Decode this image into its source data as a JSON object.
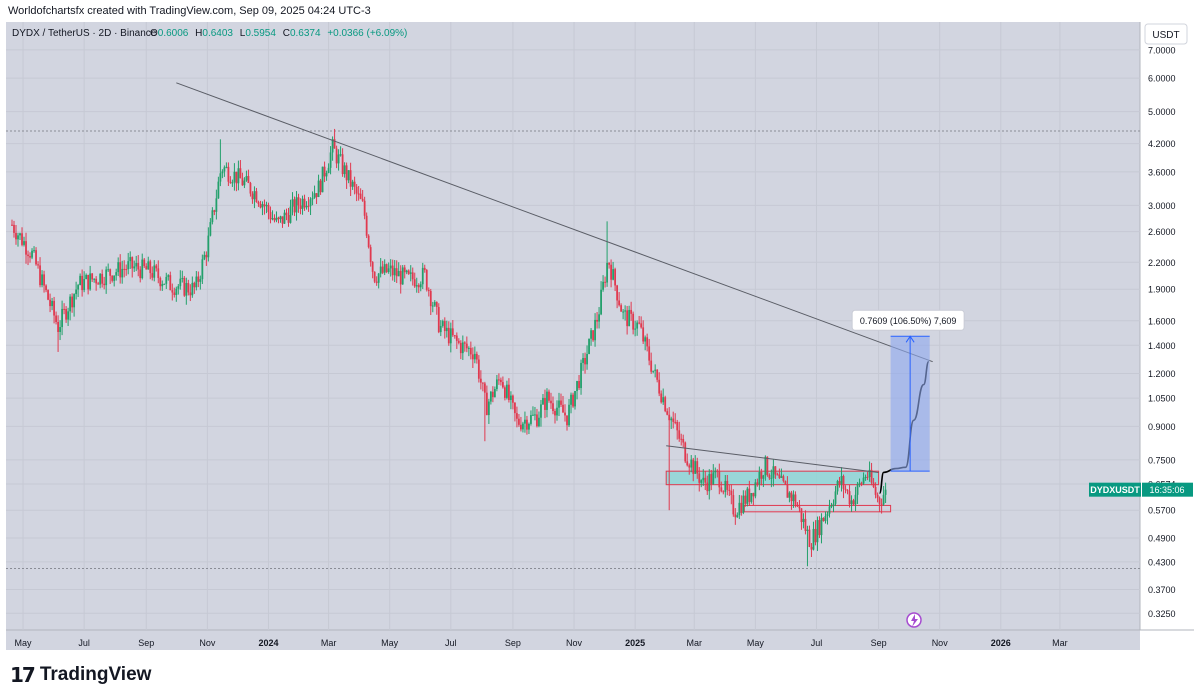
{
  "attribution": "Worldofchartsfx created with TradingView.com, Sep 09, 2025 04:24 UTC-3",
  "legend": {
    "symbol": "DYDX / TetherUS · 2D · Binance",
    "o_label": "O",
    "o_value": "0.6006",
    "h_label": "H",
    "h_value": "0.6403",
    "l_label": "L",
    "l_value": "0.5954",
    "c_label": "C",
    "c_value": "0.6374",
    "change": "+0.0366 (+6.09%)"
  },
  "currency_button": "USDT",
  "price_tag": {
    "symbol": "DYDXUSDT",
    "countdown": "16:35:06"
  },
  "measure_label": "0.7609 (106.50%) 7,609",
  "footer_logo": "TradingView",
  "colors": {
    "background": "#d2d5e0",
    "up": "#22a06b",
    "down": "#e0394f",
    "trendline": "#5a5d66",
    "zone_fill": "#8fd6d6",
    "zone_border": "#e0394f",
    "measure_fill": "#8ea8ef",
    "measure_line": "#2962ff",
    "projection": "#000000",
    "lightning_icon": "#a64bd0"
  },
  "chart_data": {
    "type": "candlestick",
    "symbol": "DYDX / TetherUS",
    "interval": "2D",
    "exchange": "Binance",
    "y_scale": "log",
    "y_ticks": [
      "7.0000",
      "6.0000",
      "5.0000",
      "4.2000",
      "3.6000",
      "3.0000",
      "2.6000",
      "2.2000",
      "1.9000",
      "1.6000",
      "1.4000",
      "1.2000",
      "1.0500",
      "0.9000",
      "0.7500",
      "0.6574",
      "0.5700",
      "0.4900",
      "0.4300",
      "0.3700",
      "0.3250"
    ],
    "x_ticks": [
      "May",
      "Jul",
      "Sep",
      "Nov",
      "2024",
      "Mar",
      "May",
      "Jul",
      "Sep",
      "Nov",
      "2025",
      "Mar",
      "May",
      "Jul",
      "Sep",
      "Nov",
      "2026",
      "Mar"
    ],
    "x_range": [
      "2023-04-20",
      "2026-04-15"
    ],
    "y_range": [
      0.3,
      7.8
    ],
    "anchors": [
      [
        "2023-04-20",
        2.7
      ],
      [
        "2023-05-10",
        2.3
      ],
      [
        "2023-06-05",
        1.55
      ],
      [
        "2023-06-25",
        1.95
      ],
      [
        "2023-07-20",
        2.05
      ],
      [
        "2023-08-15",
        2.15
      ],
      [
        "2023-09-05",
        2.1
      ],
      [
        "2023-09-25",
        1.95
      ],
      [
        "2023-10-20",
        1.9
      ],
      [
        "2023-11-01",
        2.4
      ],
      [
        "2023-11-15",
        3.7
      ],
      [
        "2023-12-01",
        3.5
      ],
      [
        "2023-12-20",
        3.2
      ],
      [
        "2024-01-10",
        2.7
      ],
      [
        "2024-01-25",
        2.95
      ],
      [
        "2024-02-20",
        3.3
      ],
      [
        "2024-03-05",
        4.1
      ],
      [
        "2024-03-20",
        3.5
      ],
      [
        "2024-04-05",
        2.95
      ],
      [
        "2024-04-15",
        2.05
      ],
      [
        "2024-05-01",
        2.1
      ],
      [
        "2024-05-20",
        2.0
      ],
      [
        "2024-06-05",
        2.05
      ],
      [
        "2024-06-20",
        1.55
      ],
      [
        "2024-07-10",
        1.4
      ],
      [
        "2024-07-25",
        1.35
      ],
      [
        "2024-08-05",
        1.0
      ],
      [
        "2024-08-20",
        1.18
      ],
      [
        "2024-09-05",
        0.92
      ],
      [
        "2024-09-25",
        0.95
      ],
      [
        "2024-10-05",
        1.05
      ],
      [
        "2024-10-25",
        0.95
      ],
      [
        "2024-11-10",
        1.25
      ],
      [
        "2024-11-25",
        1.65
      ],
      [
        "2024-12-05",
        2.25
      ],
      [
        "2024-12-20",
        1.65
      ],
      [
        "2025-01-05",
        1.55
      ],
      [
        "2025-01-20",
        1.2
      ],
      [
        "2025-02-05",
        0.95
      ],
      [
        "2025-02-20",
        0.78
      ],
      [
        "2025-03-10",
        0.66
      ],
      [
        "2025-03-25",
        0.69
      ],
      [
        "2025-04-10",
        0.57
      ],
      [
        "2025-04-25",
        0.62
      ],
      [
        "2025-05-10",
        0.73
      ],
      [
        "2025-05-25",
        0.66
      ],
      [
        "2025-06-10",
        0.6
      ],
      [
        "2025-06-25",
        0.48
      ],
      [
        "2025-07-10",
        0.56
      ],
      [
        "2025-07-25",
        0.67
      ],
      [
        "2025-08-05",
        0.6
      ],
      [
        "2025-08-20",
        0.7
      ],
      [
        "2025-09-01",
        0.6
      ],
      [
        "2025-09-09",
        0.6374
      ]
    ],
    "wick_highlights": [
      [
        "2023-11-15",
        4.3
      ],
      [
        "2024-03-07",
        4.55
      ],
      [
        "2024-12-05",
        2.75
      ],
      [
        "2024-04-15",
        1.62
      ]
    ],
    "wick_lows": [
      [
        "2023-06-05",
        1.35
      ],
      [
        "2024-08-05",
        0.83
      ],
      [
        "2025-06-22",
        0.42
      ],
      [
        "2025-02-05",
        0.57
      ]
    ],
    "hlines": [
      4.5,
      0.415
    ],
    "trendlines": [
      {
        "from": [
          "2023-10-01",
          5.85
        ],
        "to": [
          "2025-10-25",
          1.28
        ]
      },
      {
        "from": [
          "2025-02-01",
          0.81
        ],
        "to": [
          "2025-09-01",
          0.7
        ]
      }
    ],
    "zones": [
      {
        "from": "2025-02-01",
        "to": "2025-09-01",
        "low": 0.655,
        "high": 0.705
      },
      {
        "from": "2025-04-20",
        "to": "2025-09-13",
        "low": 0.565,
        "high": 0.585
      }
    ],
    "measure": {
      "from": "2025-09-13",
      "to": "2025-10-22",
      "low": 0.705,
      "high": 1.47,
      "label_value": "0.7609 (106.50%) 7,609"
    },
    "projection": [
      [
        "2025-09-02",
        0.625
      ],
      [
        "2025-09-06",
        0.7
      ],
      [
        "2025-09-18",
        0.715
      ],
      [
        "2025-09-28",
        0.72
      ],
      [
        "2025-10-06",
        0.93
      ],
      [
        "2025-10-16",
        1.13
      ],
      [
        "2025-10-21",
        1.28
      ]
    ],
    "last_price": 0.6374
  }
}
